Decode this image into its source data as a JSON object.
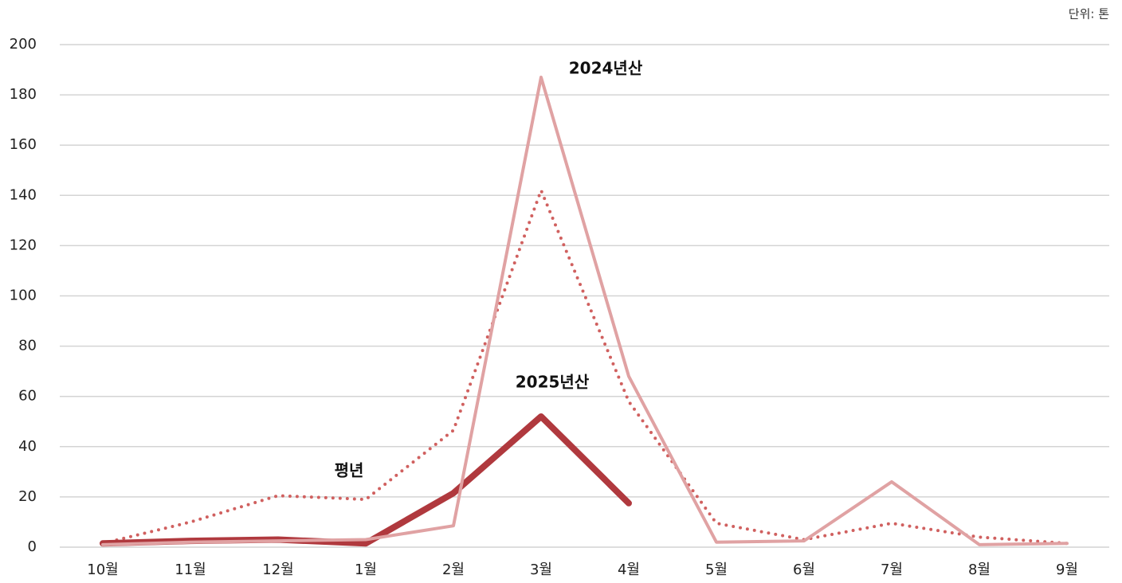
{
  "chart_data": {
    "type": "line",
    "unit_label": "단위: 톤",
    "categories": [
      "10월",
      "11월",
      "12월",
      "1월",
      "2월",
      "3월",
      "4월",
      "5월",
      "6월",
      "7월",
      "8월",
      "9월"
    ],
    "series": [
      {
        "name": "평년",
        "color": "#d0605f",
        "dash": "dotted",
        "values": [
          1.5,
          10,
          20.5,
          19,
          46.5,
          142,
          58,
          9.5,
          3,
          9.5,
          4,
          1.5
        ]
      },
      {
        "name": "2025년산",
        "color": "#b0393e",
        "dash": "solid",
        "values": [
          1.5,
          2.5,
          3,
          1.5,
          21.5,
          52,
          17.5,
          null,
          null,
          null,
          null,
          null
        ]
      },
      {
        "name": "2024년산",
        "color": "#e0a2a3",
        "dash": "solid",
        "values": [
          1,
          2,
          2.5,
          3,
          8.5,
          187,
          68,
          2,
          2.5,
          26,
          1,
          1.5
        ]
      }
    ],
    "ylim": [
      0,
      200
    ],
    "yticks": [
      0,
      20,
      40,
      60,
      80,
      100,
      120,
      140,
      160,
      180,
      200
    ],
    "grid": true
  }
}
